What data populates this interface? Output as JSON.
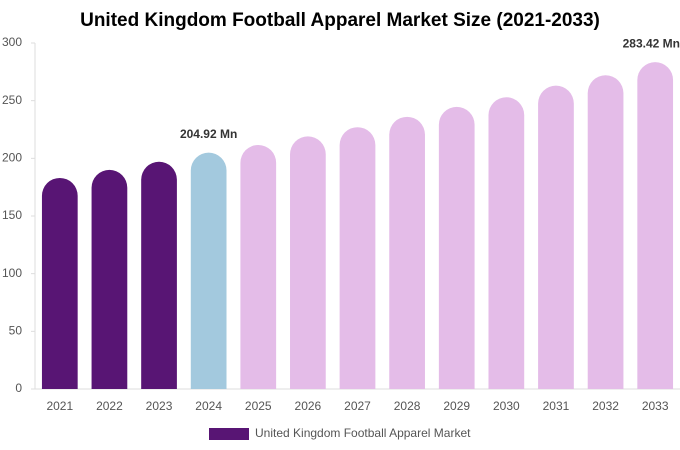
{
  "chart_data": {
    "type": "bar",
    "title": "United Kingdom Football Apparel Market Size (2021-2033)",
    "categories": [
      "2021",
      "2022",
      "2023",
      "2024",
      "2025",
      "2026",
      "2027",
      "2028",
      "2029",
      "2030",
      "2031",
      "2032",
      "2033"
    ],
    "series": [
      {
        "name": "United Kingdom Football Apparel Market",
        "color": "#581574",
        "values": [
          183,
          190,
          197,
          204.92,
          211.6,
          219,
          227,
          236,
          244.6,
          253,
          263,
          272,
          283.42
        ],
        "value_labels": [
          null,
          null,
          null,
          "204.92 Mn",
          null,
          null,
          null,
          null,
          null,
          null,
          null,
          null,
          "283.42 Mn"
        ],
        "colors": [
          "#581574",
          "#581574",
          "#581574",
          "#a3c9de",
          "#e4bce8",
          "#e4bce8",
          "#e4bce8",
          "#e4bce8",
          "#e4bce8",
          "#e4bce8",
          "#e4bce8",
          "#e4bce8",
          "#e4bce8"
        ]
      }
    ],
    "ylim": [
      0,
      300
    ],
    "yticks": [
      0,
      50,
      100,
      150,
      200,
      250,
      300
    ],
    "grid": false,
    "legend": "bottom"
  }
}
